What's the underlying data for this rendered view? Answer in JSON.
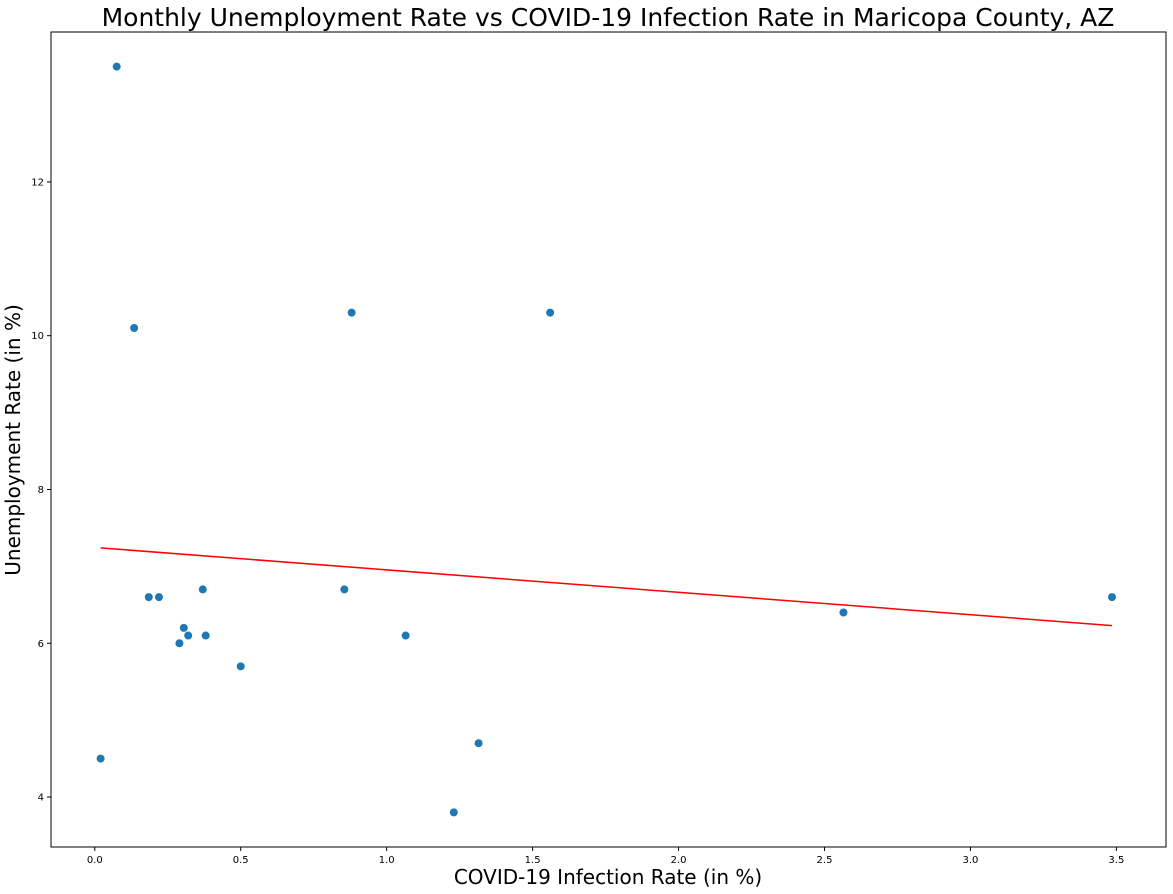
{
  "chart_data": {
    "type": "scatter",
    "title": "Monthly Unemployment Rate vs COVID-19 Infection Rate in Maricopa County, AZ",
    "xlabel": "COVID-19 Infection Rate (in %)",
    "ylabel": "Unemployment Rate (in %)",
    "xlim": [
      -0.15,
      3.67
    ],
    "ylim": [
      3.35,
      13.95
    ],
    "x_ticks": [
      0.0,
      0.5,
      1.0,
      1.5,
      2.0,
      2.5,
      3.0,
      3.5
    ],
    "x_tick_labels": [
      "0.0",
      "0.5",
      "1.0",
      "1.5",
      "2.0",
      "2.5",
      "3.0",
      "3.5"
    ],
    "y_ticks": [
      4,
      6,
      8,
      10,
      12
    ],
    "y_tick_labels": [
      "4",
      "6",
      "8",
      "10",
      "12"
    ],
    "grid": false,
    "points": [
      {
        "x": 0.02,
        "y": 4.5
      },
      {
        "x": 0.075,
        "y": 13.5
      },
      {
        "x": 0.135,
        "y": 10.1
      },
      {
        "x": 0.185,
        "y": 6.6
      },
      {
        "x": 0.22,
        "y": 6.6
      },
      {
        "x": 0.29,
        "y": 6.0
      },
      {
        "x": 0.305,
        "y": 6.2
      },
      {
        "x": 0.32,
        "y": 6.1
      },
      {
        "x": 0.37,
        "y": 6.7
      },
      {
        "x": 0.38,
        "y": 6.1
      },
      {
        "x": 0.5,
        "y": 5.7
      },
      {
        "x": 0.855,
        "y": 6.7
      },
      {
        "x": 0.88,
        "y": 10.3
      },
      {
        "x": 1.065,
        "y": 6.1
      },
      {
        "x": 1.23,
        "y": 3.8
      },
      {
        "x": 1.315,
        "y": 4.7
      },
      {
        "x": 1.56,
        "y": 10.3
      },
      {
        "x": 2.565,
        "y": 6.4
      },
      {
        "x": 3.485,
        "y": 6.6
      }
    ],
    "regression": {
      "x": [
        0.02,
        3.485
      ],
      "y": [
        7.24,
        6.23
      ]
    },
    "colors": {
      "points": "#1f77b4",
      "regression": "#ff0000",
      "axes": "#000000"
    }
  }
}
